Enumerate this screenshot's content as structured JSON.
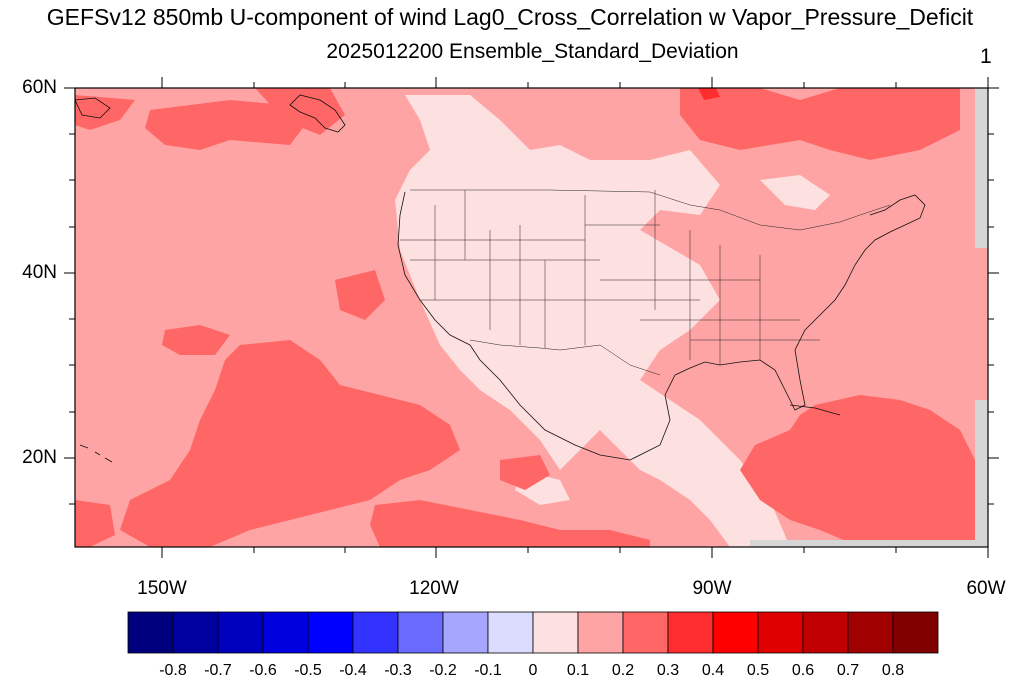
{
  "title": "GEFSv12 850mb U-component of wind Lag0_Cross_Correlation w Vapor_Pressure_Deficit",
  "subtitle": "2025012200 Ensemble_Standard_Deviation",
  "panel_number": "1",
  "map": {
    "lon_range": [
      -160,
      -60
    ],
    "lat_range": [
      10,
      60
    ],
    "y_ticks": [
      "60N",
      "40N",
      "20N"
    ],
    "x_ticks": [
      "150W",
      "120W",
      "90W",
      "60W"
    ],
    "background_value_range": "0.1-0.2"
  },
  "colorbar": {
    "labels": [
      "-0.8",
      "-0.7",
      "-0.6",
      "-0.5",
      "-0.4",
      "-0.3",
      "-0.2",
      "-0.1",
      "0",
      "0.1",
      "0.2",
      "0.3",
      "0.4",
      "0.5",
      "0.6",
      "0.7",
      "0.8"
    ],
    "colors": [
      "#00007f",
      "#00009f",
      "#0000bf",
      "#0000df",
      "#0000ff",
      "#3333ff",
      "#6a6aff",
      "#a6a6ff",
      "#dcdcff",
      "#fde0e0",
      "#ffa4a4",
      "#ff6666",
      "#ff2d2d",
      "#ff0000",
      "#df0000",
      "#c00000",
      "#a00000",
      "#800000"
    ]
  },
  "colors": {
    "level_0_0.1": "#fde0e0",
    "level_0.1_0.2": "#ffa4a4",
    "level_0.2_0.3": "#ff6666",
    "level_0.3_0.4": "#ff2d2d",
    "missing": "#d6d6d6"
  }
}
